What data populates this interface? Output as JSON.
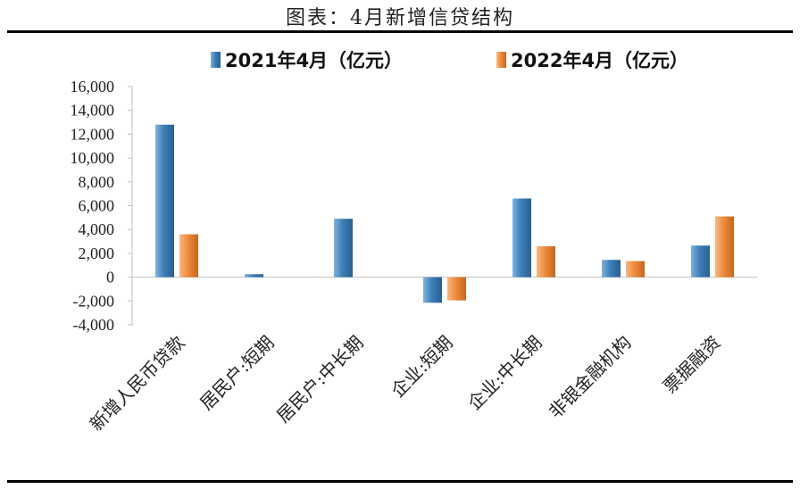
{
  "chart_data": {
    "type": "bar",
    "title": "图表：4月新增信贷结构",
    "categories": [
      "新增人民币贷款",
      "居民户:短期",
      "居民户:中长期",
      "企业:短期",
      "企业:中长期",
      "非银金融机构",
      "票据融资"
    ],
    "series": [
      {
        "name": "2021年4月（亿元）",
        "color": "#3d7fb8",
        "values": [
          12800,
          250,
          4900,
          -2150,
          6600,
          1450,
          2650
        ]
      },
      {
        "name": "2022年4月（亿元）",
        "color": "#ee8a3c",
        "values": [
          3600,
          null,
          null,
          -1950,
          2600,
          1350,
          5100
        ]
      }
    ],
    "ylim": [
      -4000,
      16000
    ],
    "yticks": [
      {
        "value": 16000,
        "label": "16,000"
      },
      {
        "value": 14000,
        "label": "14,000"
      },
      {
        "value": 12000,
        "label": "12,000"
      },
      {
        "value": 10000,
        "label": "10,000"
      },
      {
        "value": 8000,
        "label": "8,000"
      },
      {
        "value": 6000,
        "label": "6,000"
      },
      {
        "value": 4000,
        "label": "4,000"
      },
      {
        "value": 2000,
        "label": "2,000"
      },
      {
        "value": 0,
        "label": "0"
      },
      {
        "value": -2000,
        "label": "-2,000"
      },
      {
        "value": -4000,
        "label": "-4,000"
      }
    ],
    "grid": false,
    "legend_position": "top"
  }
}
